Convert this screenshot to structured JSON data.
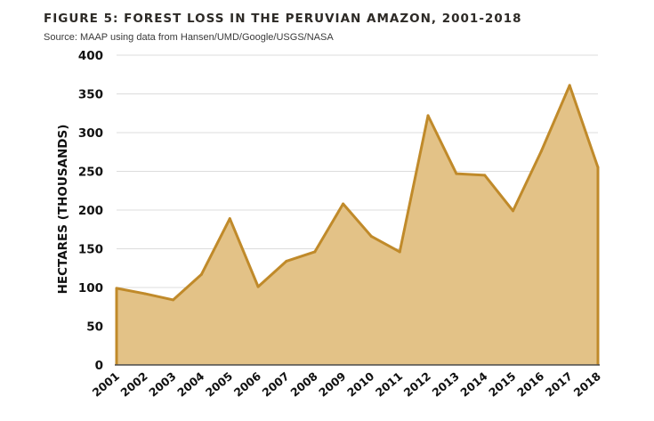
{
  "figure": {
    "title": "FIGURE 5: FOREST LOSS IN THE PERUVIAN AMAZON, 2001-2018",
    "source": "Source: MAAP using data from Hansen/UMD/Google/USGS/NASA"
  },
  "colors": {
    "fill": "#e3c287",
    "line": "#c08a2a",
    "grid": "#dcdcdc",
    "axis": "#4a4a4a"
  },
  "chart_data": {
    "type": "area",
    "title": "FIGURE 5: FOREST LOSS IN THE PERUVIAN AMAZON, 2001-2018",
    "xlabel": "",
    "ylabel": "HECTARES (THOUSANDS)",
    "ylim": [
      0,
      400
    ],
    "yticks": [
      0,
      50,
      100,
      150,
      200,
      250,
      300,
      350,
      400
    ],
    "grid": true,
    "categories": [
      "2001",
      "2002",
      "2003",
      "2004",
      "2005",
      "2006",
      "2007",
      "2008",
      "2009",
      "2010",
      "2011",
      "2012",
      "2013",
      "2014",
      "2015",
      "2016",
      "2017",
      "2018"
    ],
    "values": [
      99,
      92,
      84,
      117,
      189,
      101,
      134,
      146,
      208,
      166,
      146,
      322,
      247,
      245,
      199,
      276,
      361,
      255
    ]
  }
}
